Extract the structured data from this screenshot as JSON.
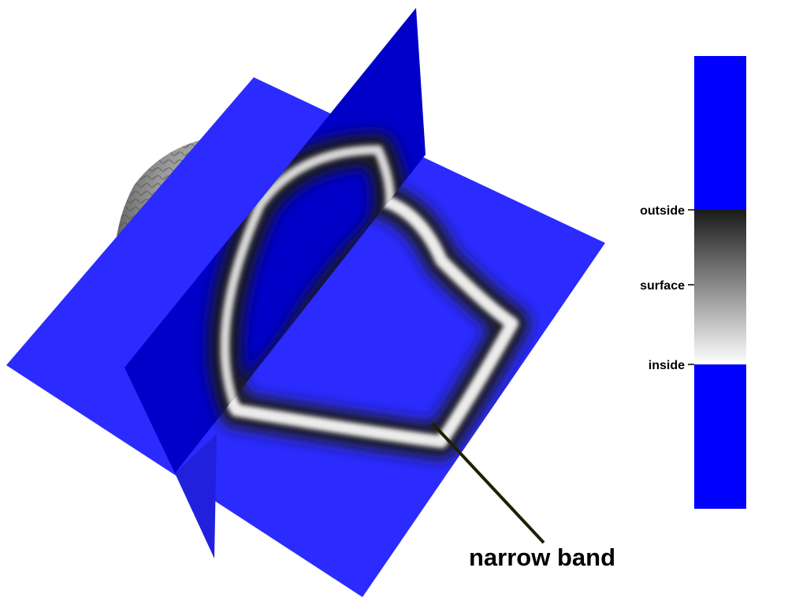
{
  "figure": {
    "colorbar": {
      "colors": {
        "outside_region": "#0000ff",
        "band_dark": "#1a1a1a",
        "band_light": "#ffffff",
        "inside_region": "#0000ff"
      },
      "ticks": [
        "outside",
        "surface",
        "inside"
      ]
    },
    "annotation": {
      "label": "narrow band",
      "leader_color": "#1f1f00"
    },
    "plane_colors": {
      "horizontal": "#2b2bff",
      "vertical_back": "#0000c8",
      "vertical_front": "#2121dd"
    }
  }
}
